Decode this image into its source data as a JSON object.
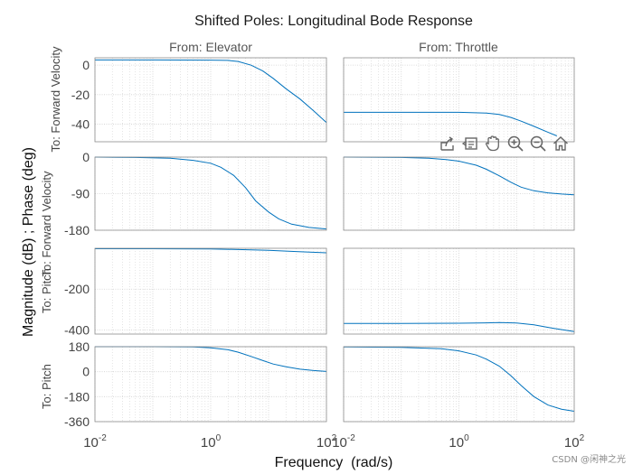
{
  "chart_data": {
    "type": "line",
    "title": "Shifted Poles: Longitudinal Bode Response",
    "ylabel": "Magnitude (dB) ; Phase (deg)",
    "xlabel": "Frequency  (rad/s)",
    "xscale": "log",
    "xlim": [
      0.01,
      100
    ],
    "x_ticks": [
      {
        "base": "10",
        "exp": "-2"
      },
      {
        "base": "10",
        "exp": "0"
      },
      {
        "base": "10",
        "exp": "2"
      }
    ],
    "columns": [
      "From: Elevator",
      "From: Throttle"
    ],
    "row_labels": [
      "To: Forward Velocity",
      "To: Forward Velocity",
      "To: Pitch",
      "To: Pitch"
    ],
    "line_color": "#0072bd",
    "rows": [
      {
        "kind": "magnitude",
        "ylim": [
          -52,
          5
        ],
        "yticks": [
          {
            "v": 0,
            "t": "0"
          },
          {
            "v": -20,
            "t": "-20"
          },
          {
            "v": -40,
            "t": "-40"
          }
        ],
        "series": [
          {
            "column": "From: Elevator",
            "x": [
              0.01,
              0.1,
              1,
              2,
              3,
              5,
              8,
              12,
              20,
              35,
              60,
              100
            ],
            "y": [
              3.5,
              3.5,
              3.4,
              3.2,
              2.5,
              0,
              -4,
              -9,
              -16,
              -23,
              -31,
              -39
            ]
          },
          {
            "column": "From: Throttle",
            "x": [
              0.01,
              0.1,
              1,
              3,
              5,
              8,
              12,
              20,
              35,
              50
            ],
            "y": [
              -32,
              -32,
              -32,
              -32.5,
              -33.5,
              -35.5,
              -38,
              -41.5,
              -45.5,
              -48
            ]
          }
        ]
      },
      {
        "kind": "phase",
        "ylim": [
          -180,
          0
        ],
        "yticks": [
          {
            "v": 0,
            "t": "0"
          },
          {
            "v": -90,
            "t": "-90"
          },
          {
            "v": -180,
            "t": "-180"
          }
        ],
        "series": [
          {
            "column": "From: Elevator",
            "x": [
              0.01,
              0.05,
              0.2,
              0.5,
              1,
              1.5,
              2.5,
              4,
              6,
              10,
              15,
              25,
              50,
              100
            ],
            "y": [
              0,
              -1,
              -3,
              -8,
              -15,
              -25,
              -45,
              -75,
              -108,
              -135,
              -152,
              -165,
              -173,
              -177
            ]
          },
          {
            "column": "From: Throttle",
            "x": [
              0.01,
              0.1,
              0.3,
              0.6,
              1,
              2,
              3,
              5,
              8,
              12,
              20,
              35,
              60,
              100
            ],
            "y": [
              0,
              -1,
              -3,
              -6,
              -10,
              -20,
              -30,
              -46,
              -62,
              -74,
              -83,
              -88,
              -91,
              -93
            ]
          }
        ]
      },
      {
        "kind": "phase",
        "ylim": [
          -420,
          0
        ],
        "yticks": [
          {
            "v": -200,
            "t": "-200"
          },
          {
            "v": -400,
            "t": "-400"
          }
        ],
        "series": [
          {
            "column": "From: Elevator",
            "x": [
              0.01,
              0.1,
              1,
              3,
              10,
              30,
              100
            ],
            "y": [
              -2,
              -2,
              -3,
              -6,
              -10,
              -16,
              -22
            ]
          },
          {
            "column": "From: Throttle",
            "x": [
              0.01,
              0.1,
              1,
              3,
              5,
              10,
              20,
              40,
              100
            ],
            "y": [
              -368,
              -368,
              -367,
              -365,
              -364,
              -366,
              -375,
              -390,
              -408
            ]
          }
        ]
      },
      {
        "kind": "phase",
        "ylim": [
          -360,
          180
        ],
        "yticks": [
          {
            "v": 180,
            "t": "180"
          },
          {
            "v": 0,
            "t": "0"
          },
          {
            "v": -180,
            "t": "-180"
          },
          {
            "v": -360,
            "t": "-360"
          }
        ],
        "series": [
          {
            "column": "From: Elevator",
            "x": [
              0.01,
              0.1,
              0.5,
              1,
              2,
              3,
              5,
              8,
              12,
              20,
              35,
              60,
              100
            ],
            "y": [
              180,
              180,
              178,
              172,
              158,
              140,
              110,
              80,
              55,
              35,
              18,
              8,
              2
            ]
          },
          {
            "column": "From: Throttle",
            "x": [
              0.01,
              0.1,
              0.5,
              1,
              2,
              3,
              5,
              8,
              12,
              20,
              35,
              60,
              100
            ],
            "y": [
              178,
              175,
              165,
              150,
              120,
              90,
              40,
              -30,
              -100,
              -180,
              -240,
              -270,
              -285
            ]
          }
        ]
      }
    ]
  },
  "watermark": "CSDN @闲神之光",
  "toolbar": {
    "items": [
      "export-icon",
      "data-tips-icon",
      "pan-icon",
      "zoom-in-icon",
      "zoom-out-icon",
      "home-icon"
    ]
  }
}
